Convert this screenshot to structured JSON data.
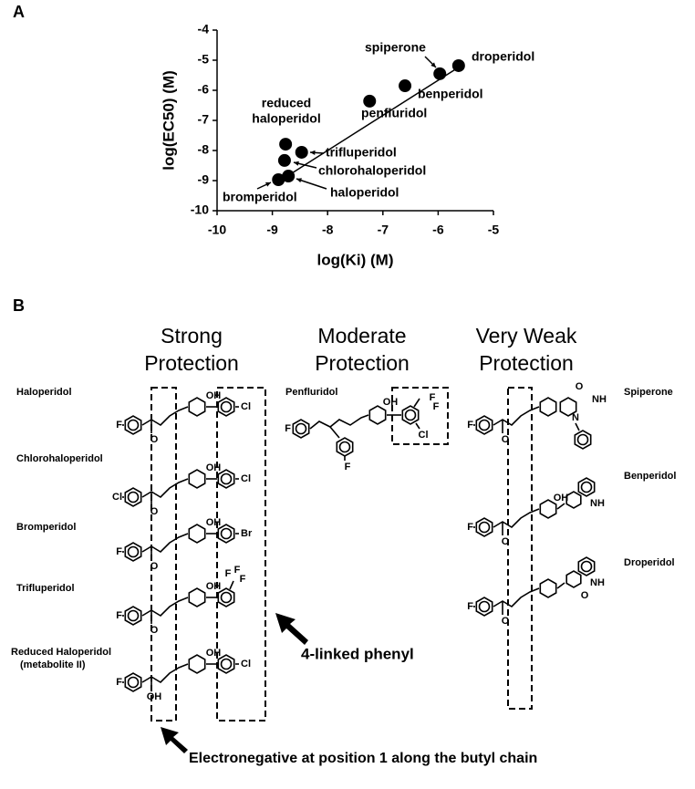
{
  "panel_a_label": "A",
  "chart_data": {
    "type": "scatter",
    "x_label": "log(Ki) (M)",
    "y_label": "log(EC50) (M)",
    "x": [
      -8.76,
      -8.78,
      -8.47,
      -8.71,
      -8.89,
      -7.24,
      -6.6,
      -5.97,
      -5.63
    ],
    "values": [
      -7.79,
      -8.33,
      -8.06,
      -8.85,
      -8.97,
      -6.36,
      -5.85,
      -5.45,
      -5.18
    ],
    "point_labels": [
      [
        "reduced",
        "haloperidol"
      ],
      "chlorohaloperidol",
      "trifluperidol",
      "haloperidol",
      "bromperidol",
      "penfluridol",
      "benperidol",
      "spiperone",
      "droperidol"
    ],
    "color": "#000000",
    "trend_line": {
      "x": [
        -8.9,
        -5.6
      ],
      "values": [
        -9.05,
        -5.2
      ]
    },
    "xlim": [
      -10,
      -5
    ],
    "xticks": [
      -10,
      -9,
      -8,
      -7,
      -6,
      -5
    ],
    "ylim": [
      -10,
      -4
    ],
    "yticks": [
      -10,
      -9,
      -8,
      -7,
      -6,
      -5,
      -4
    ]
  },
  "panel_b": {
    "label": "B",
    "columns": [
      [
        "Strong",
        "Protection"
      ],
      [
        "Moderate",
        "Protection"
      ],
      [
        "Very Weak",
        "Protection"
      ]
    ],
    "compounds": [
      {
        "name": [
          "Haloperidol"
        ],
        "atoms": [
          "F",
          "O",
          "OH",
          "Cl"
        ]
      },
      {
        "name": [
          "Chlorohaloperidol"
        ],
        "atoms": [
          "Cl",
          "O",
          "OH",
          "Cl"
        ]
      },
      {
        "name": [
          "Bromperidol"
        ],
        "atoms": [
          "F",
          "O",
          "OH",
          "Br"
        ]
      },
      {
        "name": [
          "Trifluperidol"
        ],
        "atoms": [
          "F",
          "O",
          "OH",
          "F",
          "F",
          "F"
        ]
      },
      {
        "name": [
          "Reduced Haloperidol",
          "(metabolite II)"
        ],
        "atoms": [
          "F",
          "OH",
          "OH",
          "Cl"
        ]
      },
      {
        "name": [
          "Penfluridol"
        ],
        "atoms": [
          "F",
          "F",
          "OH",
          "F",
          "F",
          "Cl"
        ]
      },
      {
        "name": [
          "Spiperone"
        ],
        "atoms": [
          "F",
          "O",
          "O",
          "NH",
          "N"
        ]
      },
      {
        "name": [
          "Benperidol"
        ],
        "atoms": [
          "F",
          "O",
          "OH",
          "NH"
        ]
      },
      {
        "name": [
          "Droperidol"
        ],
        "atoms": [
          "F",
          "O",
          "O",
          "NH"
        ]
      }
    ],
    "callouts": [
      "4-linked phenyl",
      "Electronegative at position 1 along the butyl chain"
    ]
  }
}
